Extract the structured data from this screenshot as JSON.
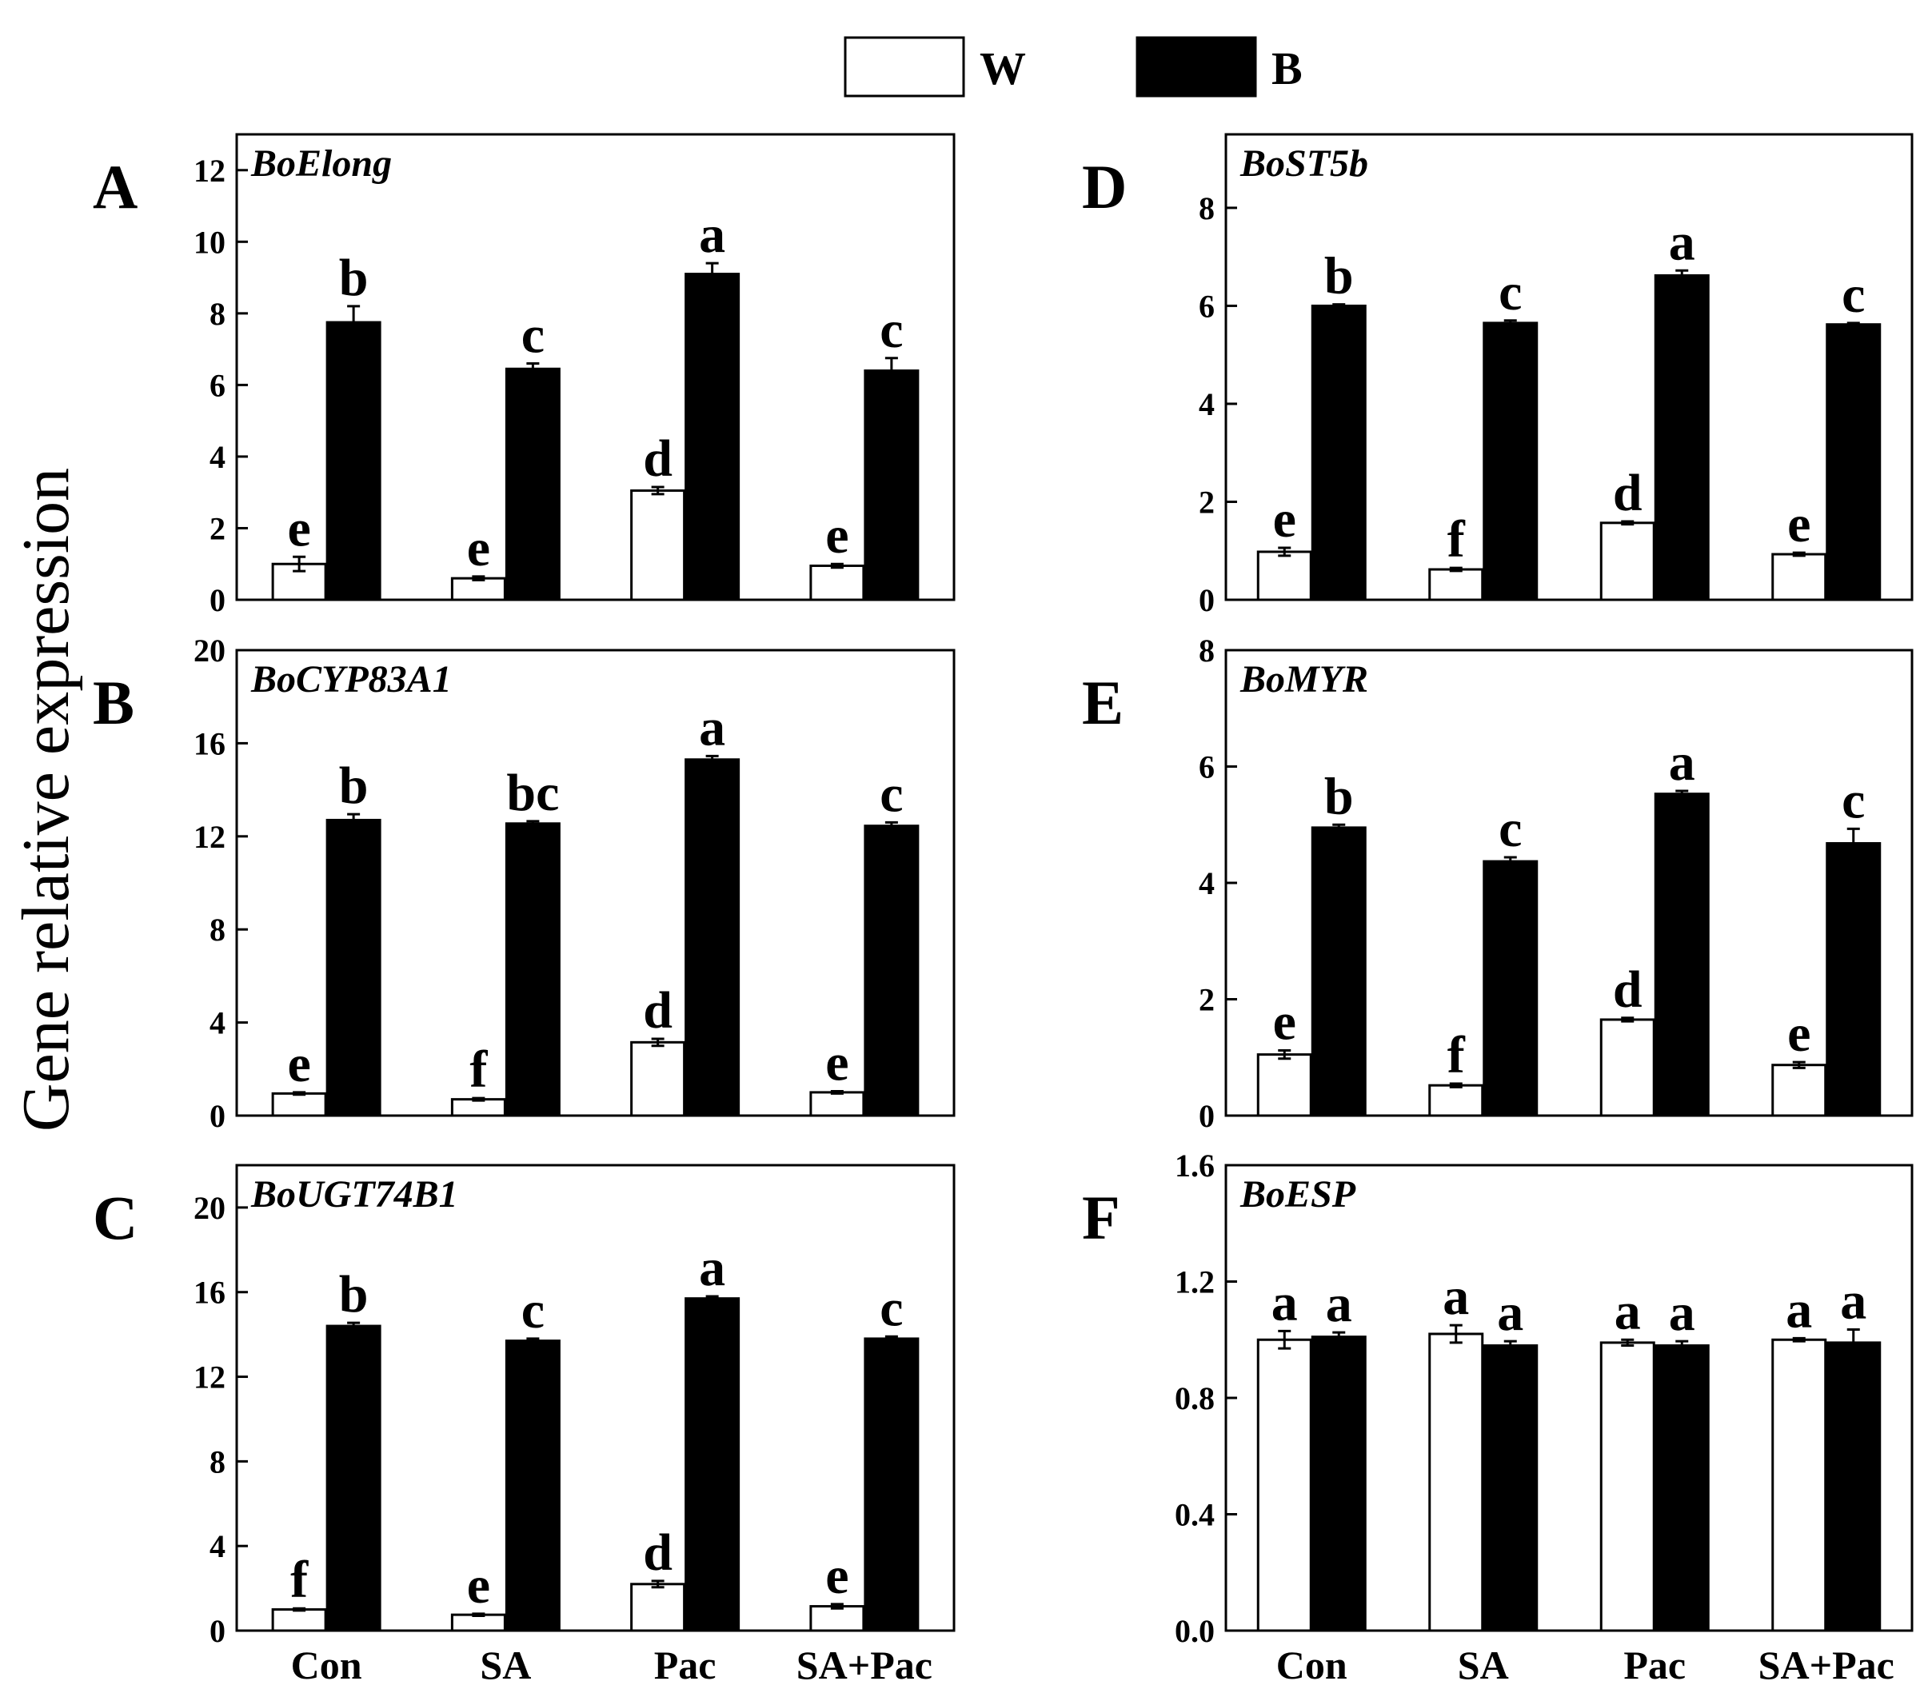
{
  "figure": {
    "ylabel": "Gene relative expression",
    "legend": [
      {
        "label": "W",
        "color": "#ffffff"
      },
      {
        "label": "B",
        "color": "#000000"
      }
    ],
    "colors": {
      "W": "#ffffff",
      "B": "#000000",
      "stroke": "#000000"
    }
  },
  "chart_data": [
    {
      "type": "bar",
      "panel": "A",
      "title": "BoElong",
      "categories": [
        "Con",
        "SA",
        "Pac",
        "SA+Pac"
      ],
      "ylim": [
        0,
        13
      ],
      "yticks": [
        "0",
        "2",
        "4",
        "6",
        "8",
        "10",
        "12"
      ],
      "ytick_values": [
        0,
        2,
        4,
        6,
        8,
        10,
        12
      ],
      "series": [
        {
          "name": "W",
          "values": [
            1.0,
            0.6,
            3.05,
            0.95
          ],
          "errors": [
            0.2,
            0.05,
            0.1,
            0.05
          ],
          "letters": [
            "e",
            "e",
            "d",
            "e"
          ]
        },
        {
          "name": "B",
          "values": [
            7.75,
            6.45,
            9.1,
            6.4
          ],
          "errors": [
            0.45,
            0.15,
            0.3,
            0.35
          ],
          "letters": [
            "b",
            "c",
            "a",
            "c"
          ]
        }
      ]
    },
    {
      "type": "bar",
      "panel": "B",
      "title": "BoCYP83A1",
      "categories": [
        "Con",
        "SA",
        "Pac",
        "SA+Pac"
      ],
      "ylim": [
        0,
        20
      ],
      "yticks": [
        "0",
        "4",
        "8",
        "12",
        "16",
        "20"
      ],
      "ytick_values": [
        0,
        4,
        8,
        12,
        16,
        20
      ],
      "series": [
        {
          "name": "W",
          "values": [
            0.95,
            0.7,
            3.15,
            1.0
          ],
          "errors": [
            0.05,
            0.05,
            0.15,
            0.05
          ],
          "letters": [
            "e",
            "f",
            "d",
            "e"
          ]
        },
        {
          "name": "B",
          "values": [
            12.7,
            12.55,
            15.3,
            12.45
          ],
          "errors": [
            0.25,
            0.1,
            0.15,
            0.15
          ],
          "letters": [
            "b",
            "bc",
            "a",
            "c"
          ]
        }
      ]
    },
    {
      "type": "bar",
      "panel": "C",
      "title": "BoUGT74B1",
      "categories": [
        "Con",
        "SA",
        "Pac",
        "SA+Pac"
      ],
      "ylim": [
        0,
        22
      ],
      "yticks": [
        "0",
        "4",
        "8",
        "12",
        "16",
        "20"
      ],
      "ytick_values": [
        0,
        4,
        8,
        12,
        16,
        20
      ],
      "series": [
        {
          "name": "W",
          "values": [
            1.0,
            0.75,
            2.2,
            1.15
          ],
          "errors": [
            0.05,
            0.05,
            0.15,
            0.1
          ],
          "letters": [
            "f",
            "e",
            "d",
            "e"
          ]
        },
        {
          "name": "B",
          "values": [
            14.4,
            13.7,
            15.7,
            13.8
          ],
          "errors": [
            0.15,
            0.1,
            0.1,
            0.1
          ],
          "letters": [
            "b",
            "c",
            "a",
            "c"
          ]
        }
      ]
    },
    {
      "type": "bar",
      "panel": "D",
      "title": "BoST5b",
      "categories": [
        "Con",
        "SA",
        "Pac",
        "SA+Pac"
      ],
      "ylim": [
        0,
        9.5
      ],
      "yticks": [
        "0",
        "2",
        "4",
        "6",
        "8"
      ],
      "ytick_values": [
        0,
        2,
        4,
        6,
        8
      ],
      "series": [
        {
          "name": "W",
          "values": [
            0.98,
            0.62,
            1.57,
            0.93
          ],
          "errors": [
            0.08,
            0.03,
            0.03,
            0.03
          ],
          "letters": [
            "e",
            "f",
            "d",
            "e"
          ]
        },
        {
          "name": "B",
          "values": [
            6.0,
            5.65,
            6.62,
            5.62
          ],
          "errors": [
            0.03,
            0.05,
            0.1,
            0.03
          ],
          "letters": [
            "b",
            "c",
            "a",
            "c"
          ]
        }
      ]
    },
    {
      "type": "bar",
      "panel": "E",
      "title": "BoMYR",
      "categories": [
        "Con",
        "SA",
        "Pac",
        "SA+Pac"
      ],
      "ylim": [
        0,
        8
      ],
      "yticks": [
        "0",
        "2",
        "4",
        "6",
        "8"
      ],
      "ytick_values": [
        0,
        2,
        4,
        6,
        8
      ],
      "series": [
        {
          "name": "W",
          "values": [
            1.05,
            0.52,
            1.65,
            0.87
          ],
          "errors": [
            0.07,
            0.03,
            0.03,
            0.05
          ],
          "letters": [
            "e",
            "f",
            "d",
            "e"
          ]
        },
        {
          "name": "B",
          "values": [
            4.95,
            4.37,
            5.53,
            4.68
          ],
          "errors": [
            0.05,
            0.07,
            0.05,
            0.25
          ],
          "letters": [
            "b",
            "c",
            "a",
            "c"
          ]
        }
      ]
    },
    {
      "type": "bar",
      "panel": "F",
      "title": "BoESP",
      "categories": [
        "Con",
        "SA",
        "Pac",
        "SA+Pac"
      ],
      "ylim": [
        0,
        1.6
      ],
      "yticks": [
        "0.0",
        "0.4",
        "0.8",
        "1.2",
        "1.6"
      ],
      "ytick_values": [
        0,
        0.4,
        0.8,
        1.2,
        1.6
      ],
      "series": [
        {
          "name": "W",
          "values": [
            1.0,
            1.02,
            0.99,
            1.0
          ],
          "errors": [
            0.03,
            0.03,
            0.01,
            0.005
          ],
          "letters": [
            "a",
            "a",
            "a",
            "a"
          ]
        },
        {
          "name": "B",
          "values": [
            1.01,
            0.98,
            0.98,
            0.99
          ],
          "errors": [
            0.015,
            0.015,
            0.015,
            0.045
          ],
          "letters": [
            "a",
            "a",
            "a",
            "a"
          ]
        }
      ]
    }
  ]
}
